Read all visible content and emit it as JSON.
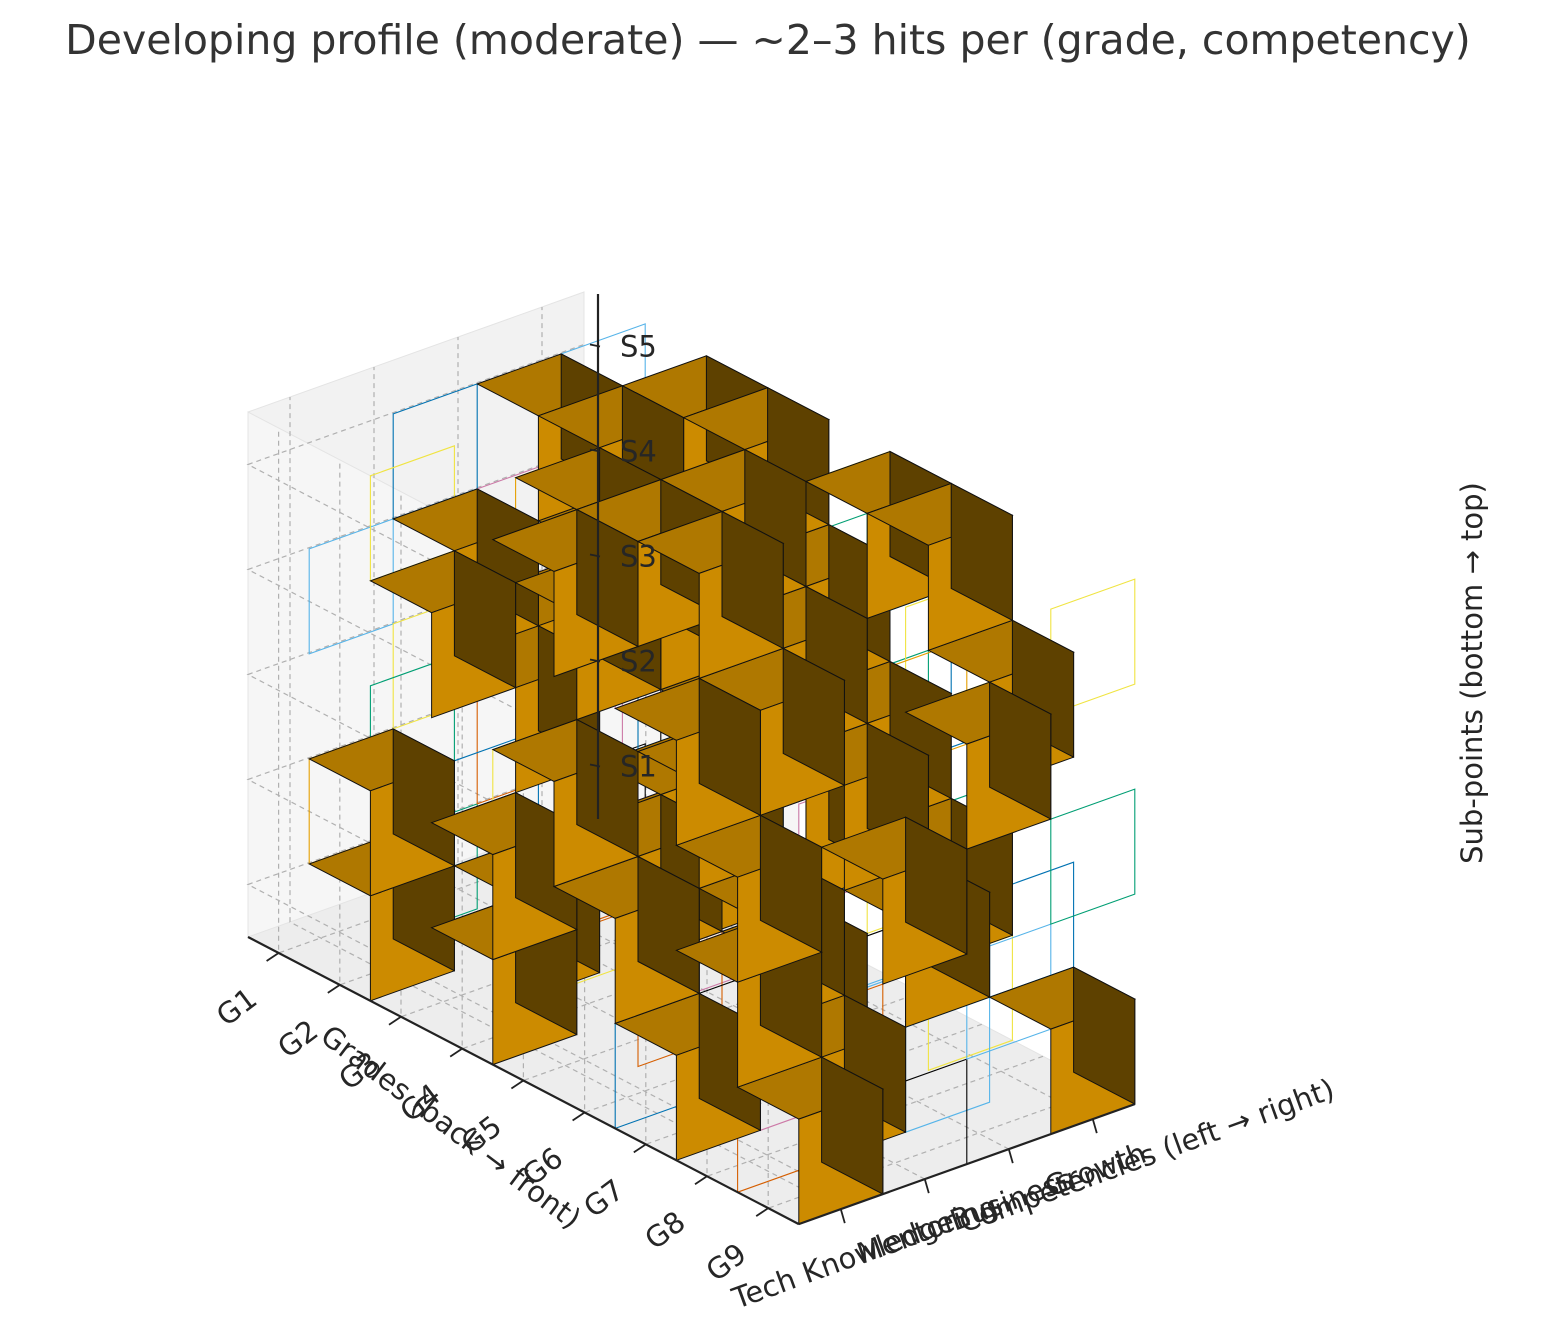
{
  "chart_data": {
    "type": "3d-voxel",
    "title": "Developing profile (moderate) — ~2–3 hits per (grade, competency)",
    "xlabel": "Grades (back → front)",
    "ylabel": "Competencies (left → right)",
    "zlabel": "Sub-points (bottom → top)",
    "grades": [
      "G1",
      "G2",
      "G3",
      "G4",
      "G5",
      "G6",
      "G7",
      "G8",
      "G9"
    ],
    "competencies": [
      "Tech Knowledge",
      "Mentoring",
      "Business",
      "Growth"
    ],
    "subpoints": [
      "S1",
      "S2",
      "S3",
      "S4",
      "S5"
    ],
    "filled_color": "#cc8b00",
    "empty_cell_colors": [
      "#e69f00",
      "#56b4e9",
      "#009e73",
      "#f0e442",
      "#0072b2",
      "#d55e00",
      "#cc79a7",
      "#000000"
    ],
    "hits": [
      [
        1,
        0,
        1
      ],
      [
        1,
        0,
        2
      ],
      [
        1,
        1,
        4
      ],
      [
        1,
        2,
        3
      ],
      [
        1,
        2,
        5
      ],
      [
        1,
        3,
        3
      ],
      [
        1,
        3,
        4
      ],
      [
        2,
        0,
        4
      ],
      [
        2,
        1,
        1
      ],
      [
        2,
        1,
        3
      ],
      [
        2,
        2,
        4
      ],
      [
        2,
        2,
        5
      ],
      [
        2,
        3,
        1
      ],
      [
        2,
        3,
        5
      ],
      [
        3,
        0,
        1
      ],
      [
        3,
        0,
        2
      ],
      [
        3,
        1,
        4
      ],
      [
        3,
        1,
        5
      ],
      [
        3,
        2,
        2
      ],
      [
        3,
        2,
        4
      ],
      [
        3,
        3,
        3
      ],
      [
        3,
        3,
        5
      ],
      [
        4,
        0,
        3
      ],
      [
        4,
        0,
        5
      ],
      [
        4,
        1,
        2
      ],
      [
        4,
        1,
        5
      ],
      [
        4,
        2,
        3
      ],
      [
        4,
        2,
        5
      ],
      [
        4,
        3,
        2
      ],
      [
        4,
        3,
        4
      ],
      [
        5,
        0,
        2
      ],
      [
        5,
        1,
        3
      ],
      [
        5,
        1,
        5
      ],
      [
        5,
        2,
        1
      ],
      [
        5,
        2,
        4
      ],
      [
        5,
        3,
        3
      ],
      [
        5,
        3,
        5
      ],
      [
        6,
        0,
        1
      ],
      [
        6,
        0,
        4
      ],
      [
        6,
        1,
        2
      ],
      [
        6,
        1,
        4
      ],
      [
        6,
        2,
        3
      ],
      [
        6,
        3,
        2
      ],
      [
        6,
        3,
        5
      ],
      [
        7,
        0,
        2
      ],
      [
        7,
        0,
        3
      ],
      [
        7,
        1,
        1
      ],
      [
        7,
        2,
        2
      ],
      [
        7,
        3,
        4
      ],
      [
        8,
        0,
        1
      ],
      [
        8,
        1,
        3
      ],
      [
        8,
        2,
        4
      ],
      [
        8,
        3,
        1
      ]
    ],
    "grid": true
  }
}
